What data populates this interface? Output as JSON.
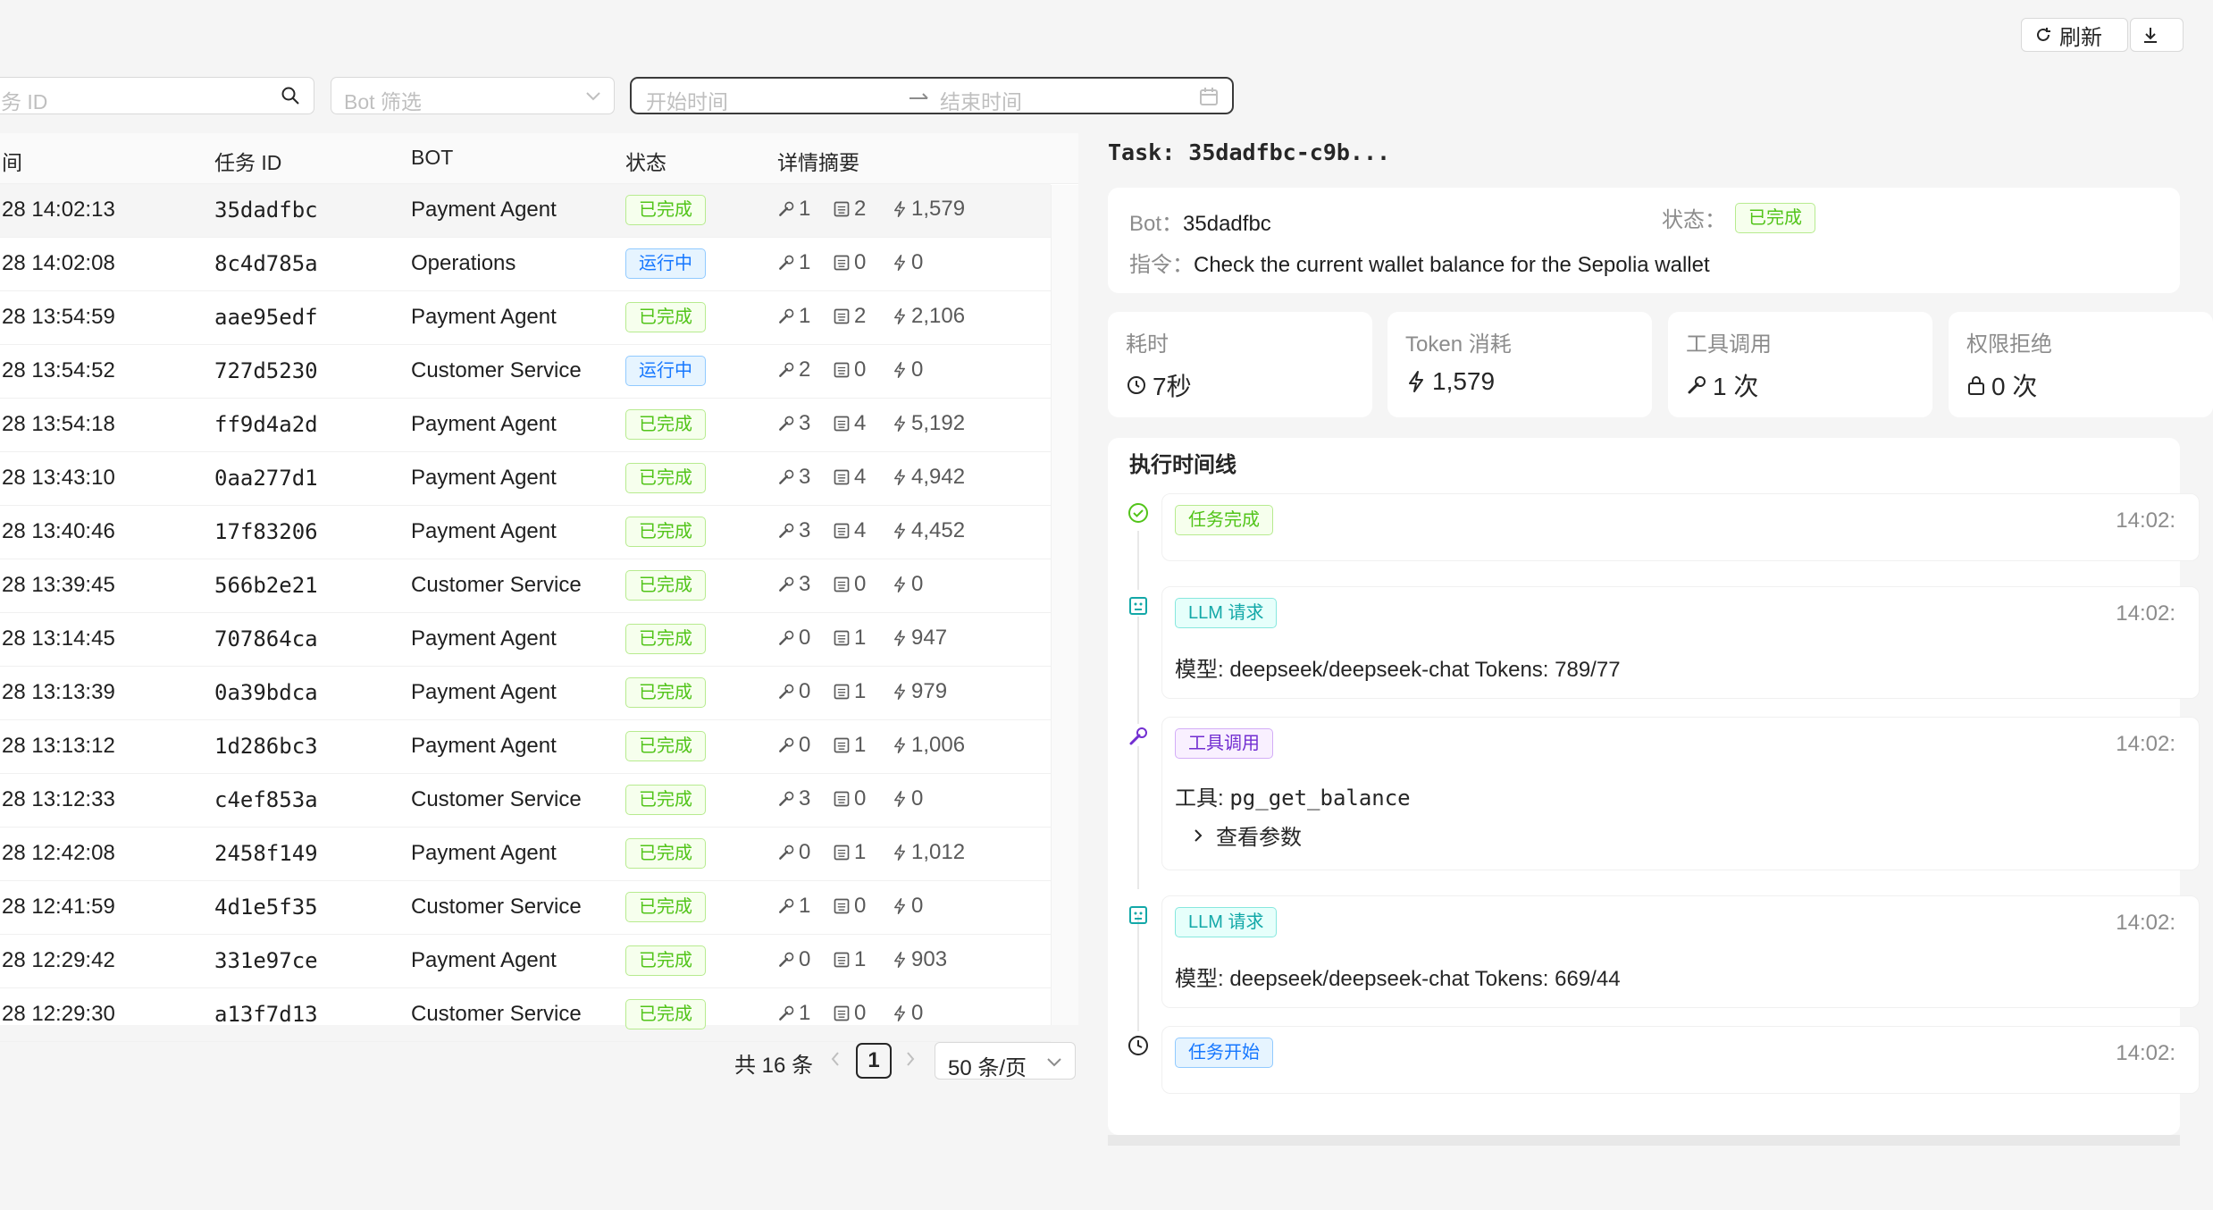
{
  "toolbar": {
    "refresh_label": "刷新",
    "refresh_icon": "refresh-icon",
    "export_icon": "download-icon"
  },
  "filters": {
    "task_placeholder": "务 ID",
    "bot_placeholder": "Bot 筛选",
    "start_placeholder": "开始时间",
    "end_placeholder": "结束时间"
  },
  "table": {
    "headers": {
      "time": "间",
      "task_id": "任务 ID",
      "bot": "BOT",
      "status": "状态",
      "summary": "详情摘要"
    },
    "rows": [
      {
        "time": "28 14:02:13",
        "id": "35dadfbc",
        "bot": "Payment Agent",
        "status": "已完成",
        "state": "done",
        "tools": "1",
        "llm": "2",
        "tokens": "1,579"
      },
      {
        "time": "28 14:02:08",
        "id": "8c4d785a",
        "bot": "Operations",
        "status": "运行中",
        "state": "running",
        "tools": "1",
        "llm": "0",
        "tokens": "0"
      },
      {
        "time": "28 13:54:59",
        "id": "aae95edf",
        "bot": "Payment Agent",
        "status": "已完成",
        "state": "done",
        "tools": "1",
        "llm": "2",
        "tokens": "2,106"
      },
      {
        "time": "28 13:54:52",
        "id": "727d5230",
        "bot": "Customer Service",
        "status": "运行中",
        "state": "running",
        "tools": "2",
        "llm": "0",
        "tokens": "0"
      },
      {
        "time": "28 13:54:18",
        "id": "ff9d4a2d",
        "bot": "Payment Agent",
        "status": "已完成",
        "state": "done",
        "tools": "3",
        "llm": "4",
        "tokens": "5,192"
      },
      {
        "time": "28 13:43:10",
        "id": "0aa277d1",
        "bot": "Payment Agent",
        "status": "已完成",
        "state": "done",
        "tools": "3",
        "llm": "4",
        "tokens": "4,942"
      },
      {
        "time": "28 13:40:46",
        "id": "17f83206",
        "bot": "Payment Agent",
        "status": "已完成",
        "state": "done",
        "tools": "3",
        "llm": "4",
        "tokens": "4,452"
      },
      {
        "time": "28 13:39:45",
        "id": "566b2e21",
        "bot": "Customer Service",
        "status": "已完成",
        "state": "done",
        "tools": "3",
        "llm": "0",
        "tokens": "0"
      },
      {
        "time": "28 13:14:45",
        "id": "707864ca",
        "bot": "Payment Agent",
        "status": "已完成",
        "state": "done",
        "tools": "0",
        "llm": "1",
        "tokens": "947"
      },
      {
        "time": "28 13:13:39",
        "id": "0a39bdca",
        "bot": "Payment Agent",
        "status": "已完成",
        "state": "done",
        "tools": "0",
        "llm": "1",
        "tokens": "979"
      },
      {
        "time": "28 13:13:12",
        "id": "1d286bc3",
        "bot": "Payment Agent",
        "status": "已完成",
        "state": "done",
        "tools": "0",
        "llm": "1",
        "tokens": "1,006"
      },
      {
        "time": "28 13:12:33",
        "id": "c4ef853a",
        "bot": "Customer Service",
        "status": "已完成",
        "state": "done",
        "tools": "3",
        "llm": "0",
        "tokens": "0"
      },
      {
        "time": "28 12:42:08",
        "id": "2458f149",
        "bot": "Payment Agent",
        "status": "已完成",
        "state": "done",
        "tools": "0",
        "llm": "1",
        "tokens": "1,012"
      },
      {
        "time": "28 12:41:59",
        "id": "4d1e5f35",
        "bot": "Customer Service",
        "status": "已完成",
        "state": "done",
        "tools": "1",
        "llm": "0",
        "tokens": "0"
      },
      {
        "time": "28 12:29:42",
        "id": "331e97ce",
        "bot": "Payment Agent",
        "status": "已完成",
        "state": "done",
        "tools": "0",
        "llm": "1",
        "tokens": "903"
      },
      {
        "time": "28 12:29:30",
        "id": "a13f7d13",
        "bot": "Customer Service",
        "status": "已完成",
        "state": "done",
        "tools": "1",
        "llm": "0",
        "tokens": "0"
      }
    ]
  },
  "pagination": {
    "total": "共 16 条",
    "current": "1",
    "page_size": "50 条/页"
  },
  "detail": {
    "title": "Task: 35dadfbc-c9b...",
    "bot_label": "Bot：",
    "bot_value": "35dadfbc",
    "status_label": "状态：",
    "status_value": "已完成",
    "instr_label": "指令：",
    "instr_value": "Check the current wallet balance for the Sepolia wallet",
    "stats": [
      {
        "title": "耗时",
        "value": "7秒",
        "icon": "clock-icon"
      },
      {
        "title": "Token 消耗",
        "value": "1,579",
        "icon": "lightning-icon"
      },
      {
        "title": "工具调用",
        "value": "1 次",
        "icon": "wrench-icon"
      },
      {
        "title": "权限拒绝",
        "value": "0 次",
        "icon": "lock-icon"
      }
    ],
    "timeline_title": "执行时间线",
    "timeline": [
      {
        "badge": "任务完成",
        "time": "14:02:"
      },
      {
        "badge": "LLM 请求",
        "time": "14:02:",
        "text": "模型: deepseek/deepseek-chat Tokens: 789/77"
      },
      {
        "badge": "工具调用",
        "time": "14:02:",
        "tool_label": "工具: ",
        "tool_name": "pg_get_balance",
        "expand": "查看参数"
      },
      {
        "badge": "LLM 请求",
        "time": "14:02:",
        "text": "模型: deepseek/deepseek-chat Tokens: 669/44"
      },
      {
        "badge": "任务开始",
        "time": "14:02:"
      }
    ]
  },
  "colors": {
    "success": "#52c41a",
    "running": "#1677ff",
    "tool": "#722ed1",
    "llm": "#13a8a8"
  }
}
